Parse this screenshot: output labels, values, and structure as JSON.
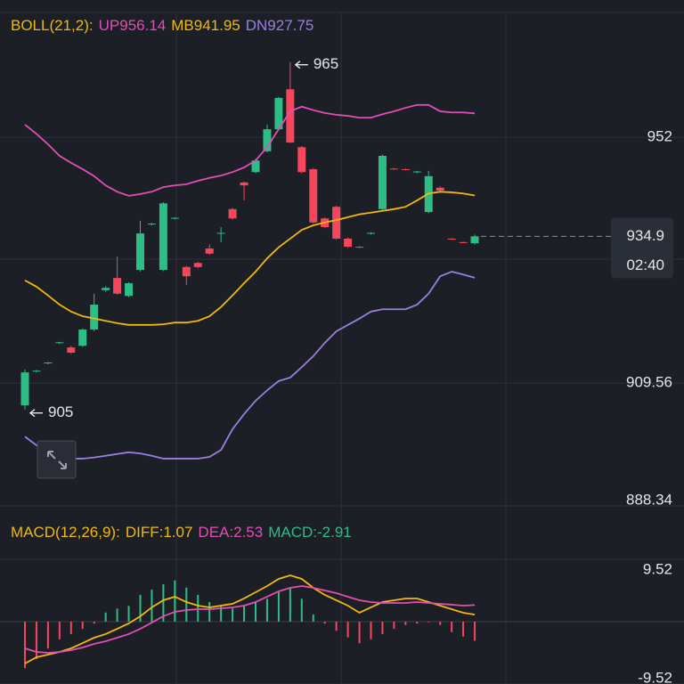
{
  "chart_data": [
    {
      "type": "candlestick",
      "title": "BOLL(21,2):",
      "up_color": "#2ebd85",
      "down_color": "#f6465d",
      "open": [
        905.7,
        911.6,
        913.0,
        916.5,
        915.7,
        916.0,
        918.8,
        925.6,
        927.7,
        924.6,
        929.1,
        937.0,
        929.1,
        938.0,
        929.6,
        930.3,
        932.8,
        935.4,
        939.6,
        944.2,
        946.0,
        949.6,
        953.4,
        960.3,
        950.3,
        946.5,
        938.0,
        940.0,
        934.5,
        933.1,
        935.4,
        939.6,
        946.6,
        946.5,
        946.0,
        939.1,
        943.3,
        934.5,
        933.9,
        933.7
      ],
      "high": [
        911.9,
        911.8,
        913.2,
        916.7,
        916.0,
        919.0,
        925.0,
        926.3,
        931.4,
        927.0,
        937.6,
        937.2,
        940.8,
        938.2,
        929.8,
        930.5,
        933.5,
        936.5,
        939.8,
        944.4,
        948.3,
        954.2,
        959.0,
        965,
        950.5,
        946.7,
        938.2,
        940.2,
        934.7,
        933.2,
        935.6,
        949.0,
        946.7,
        946.6,
        946.2,
        946.2,
        943.5,
        934.6,
        934.0,
        935.2
      ],
      "low": [
        905,
        911.4,
        912.8,
        916.3,
        914.6,
        915.8,
        918.5,
        925.3,
        924.8,
        924.4,
        928.8,
        936.8,
        928.9,
        937.8,
        926.5,
        929.4,
        931.7,
        933.9,
        937.8,
        941.1,
        945.8,
        949.4,
        953.2,
        951.0,
        945.8,
        937.1,
        936.3,
        934.3,
        932.9,
        932.9,
        935.2,
        939.4,
        946.4,
        946.3,
        945.8,
        938.9,
        942.6,
        934.3,
        933.7,
        933.5
      ],
      "close": [
        911.4,
        911.7,
        913.1,
        916.6,
        914.8,
        918.8,
        923.1,
        926.0,
        925.0,
        926.8,
        935.4,
        937.1,
        940.6,
        938.1,
        928.0,
        929.6,
        931.9,
        935.5,
        938.0,
        943.7,
        948.0,
        953.4,
        958.8,
        951.1,
        946.0,
        937.3,
        936.5,
        934.5,
        933.1,
        933.0,
        935.5,
        948.8,
        946.5,
        946.4,
        946.1,
        945.3,
        942.8,
        934.4,
        933.8,
        934.9
      ],
      "series": [
        {
          "name": "UP",
          "color": "#e04fb3",
          "values": [
            954.2,
            952.6,
            950.8,
            948.8,
            947.6,
            946.5,
            945.3,
            943.7,
            942.6,
            941.9,
            942.2,
            942.6,
            943.4,
            943.7,
            943.9,
            944.5,
            945.0,
            945.4,
            946.0,
            946.8,
            948.0,
            950.3,
            953.4,
            956.5,
            957.3,
            956.7,
            956.2,
            955.9,
            955.7,
            955.4,
            955.4,
            956.0,
            956.5,
            957.1,
            957.6,
            957.6,
            956.5,
            956.3,
            956.3,
            956.14
          ]
        },
        {
          "name": "MB",
          "color": "#f0b90b",
          "values": [
            927.3,
            926.2,
            924.7,
            923.1,
            921.9,
            921.1,
            920.7,
            920.3,
            919.9,
            919.6,
            919.6,
            919.6,
            919.7,
            920.0,
            920.0,
            920.3,
            921.1,
            922.7,
            924.7,
            926.8,
            928.8,
            931.1,
            933.0,
            934.5,
            936.0,
            936.8,
            937.3,
            937.7,
            938.2,
            938.7,
            939.0,
            939.3,
            939.6,
            940.0,
            941.1,
            942.3,
            942.6,
            942.5,
            942.3,
            941.95
          ]
        },
        {
          "name": "DN",
          "color": "#9b7fe0",
          "values": [
            900.3,
            898.8,
            897.7,
            897.0,
            896.5,
            896.5,
            896.7,
            897.0,
            897.3,
            897.6,
            897.4,
            897.0,
            896.5,
            896.5,
            896.5,
            896.5,
            896.8,
            898.0,
            901.6,
            904.2,
            906.5,
            908.3,
            909.9,
            910.5,
            912.3,
            914.2,
            916.5,
            918.5,
            919.6,
            920.7,
            921.9,
            922.3,
            922.3,
            922.3,
            923.1,
            925.0,
            928.0,
            928.8,
            928.3,
            927.75
          ]
        }
      ],
      "ylim": [
        888.34,
        973.57
      ],
      "yticks": [
        888.34,
        909.56,
        952
      ],
      "grid": true,
      "countdown": "02:40"
    },
    {
      "type": "macd",
      "title": "MACD(12,26,9):",
      "histogram": {
        "name": "MACD:",
        "up_color": "#2ebd85",
        "down_color": "#f6465d",
        "values": [
          -7.1,
          -5.7,
          -4.1,
          -2.7,
          -1.9,
          -1.1,
          -0.3,
          1.4,
          2.0,
          2.4,
          4.1,
          4.9,
          5.7,
          6.3,
          5.2,
          4.1,
          3.0,
          2.4,
          2.0,
          2.4,
          3.0,
          3.5,
          4.5,
          5.2,
          3.5,
          1.1,
          -0.3,
          -1.4,
          -2.4,
          -3.3,
          -2.7,
          -1.9,
          -1.1,
          -0.5,
          -0.3,
          -0.1,
          -0.5,
          -1.6,
          -2.3,
          -2.91
        ]
      },
      "series": [
        {
          "name": "DIFF:",
          "color": "#f0b90b",
          "values": [
            -6.39,
            -5.44,
            -5.03,
            -4.63,
            -4.08,
            -3.27,
            -2.45,
            -1.9,
            -1.09,
            -0.27,
            0.82,
            2.18,
            3.27,
            3.81,
            2.99,
            2.45,
            2.18,
            2.45,
            2.72,
            3.54,
            4.49,
            5.44,
            6.53,
            7.07,
            6.53,
            5.17,
            4.08,
            3.27,
            2.45,
            1.36,
            2.18,
            2.99,
            3.27,
            3.54,
            3.54,
            2.99,
            2.45,
            1.9,
            1.36,
            1.07
          ]
        },
        {
          "name": "DEA:",
          "color": "#e04fb3",
          "values": [
            -4.08,
            -4.63,
            -4.76,
            -4.63,
            -4.35,
            -3.95,
            -3.4,
            -2.99,
            -2.45,
            -1.9,
            -1.09,
            -0.14,
            0.82,
            1.5,
            1.77,
            1.9,
            1.9,
            2.04,
            2.18,
            2.45,
            2.99,
            3.81,
            4.63,
            5.17,
            5.44,
            5.17,
            4.76,
            4.35,
            3.81,
            3.27,
            2.99,
            2.86,
            2.86,
            2.86,
            2.99,
            2.86,
            2.72,
            2.59,
            2.45,
            2.53
          ]
        }
      ],
      "ylim": [
        -9.52,
        9.52
      ],
      "yticks": [
        -9.52,
        9.52
      ],
      "grid": true
    }
  ]
}
